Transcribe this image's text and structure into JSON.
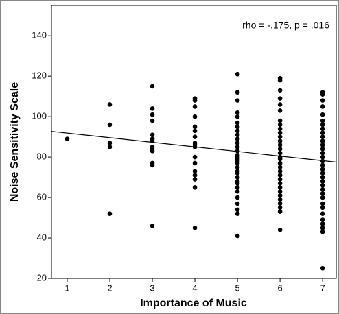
{
  "chart_data": {
    "type": "scatter",
    "annotation": "rho = -.175, p = .016",
    "xlabel": "Importance of Music",
    "ylabel": "Noise Sensitivity Scale",
    "color": "#000000",
    "xlim": [
      0.63,
      7.32
    ],
    "xticks": [
      1,
      2,
      3,
      4,
      5,
      6,
      7
    ],
    "ylim": [
      20,
      155
    ],
    "yticks": [
      20,
      40,
      60,
      80,
      100,
      120,
      140
    ],
    "x": [
      1,
      2,
      2,
      2,
      2,
      2,
      3,
      3,
      3,
      3,
      3,
      3,
      3,
      3,
      3,
      3,
      3,
      3,
      3,
      4,
      4,
      4,
      4,
      4,
      4,
      4,
      4,
      4,
      4,
      4,
      4,
      4,
      4,
      4,
      4,
      4,
      5,
      5,
      5,
      5,
      5,
      5,
      5,
      5,
      5,
      5,
      5,
      5,
      5,
      5,
      5,
      5,
      5,
      5,
      5,
      5,
      5,
      5,
      5,
      5,
      5,
      5,
      5,
      5,
      5,
      5,
      5,
      6,
      6,
      6,
      6,
      6,
      6,
      6,
      6,
      6,
      6,
      6,
      6,
      6,
      6,
      6,
      6,
      6,
      6,
      6,
      6,
      6,
      6,
      6,
      6,
      6,
      6,
      6,
      6,
      6,
      6,
      6,
      7,
      7,
      7,
      7,
      7,
      7,
      7,
      7,
      7,
      7,
      7,
      7,
      7,
      7,
      7,
      7,
      7,
      7,
      7,
      7,
      7,
      7,
      7,
      7,
      7,
      7,
      7,
      7,
      7,
      7,
      7,
      7,
      7
    ],
    "y": [
      89,
      106,
      96,
      87,
      85,
      52,
      115,
      104,
      101,
      98,
      91,
      89,
      88,
      85,
      84,
      83,
      77,
      76,
      46,
      109,
      108,
      105,
      100,
      95,
      93,
      90,
      87,
      86,
      85,
      80,
      77,
      73,
      71,
      69,
      65,
      45,
      121,
      112,
      108,
      102,
      100,
      97,
      95,
      93,
      91,
      89,
      87,
      85,
      83,
      81,
      80,
      79,
      78,
      77,
      75,
      73,
      72,
      70,
      68,
      67,
      65,
      63,
      60,
      57,
      54,
      52,
      41,
      119,
      118,
      113,
      109,
      106,
      103,
      98,
      96,
      94,
      92,
      90,
      88,
      86,
      84,
      82,
      80,
      79,
      77,
      75,
      73,
      71,
      69,
      67,
      65,
      63,
      61,
      59,
      57,
      55,
      53,
      44,
      112,
      111,
      108,
      105,
      101,
      98,
      96,
      94,
      92,
      90,
      88,
      86,
      84,
      82,
      80,
      78,
      76,
      74,
      72,
      70,
      68,
      66,
      64,
      62,
      60,
      57,
      55,
      52,
      49,
      47,
      45,
      43,
      25
    ],
    "fit_line": {
      "x": [
        0.63,
        7.32
      ],
      "y": [
        92.7,
        77.5
      ]
    }
  }
}
